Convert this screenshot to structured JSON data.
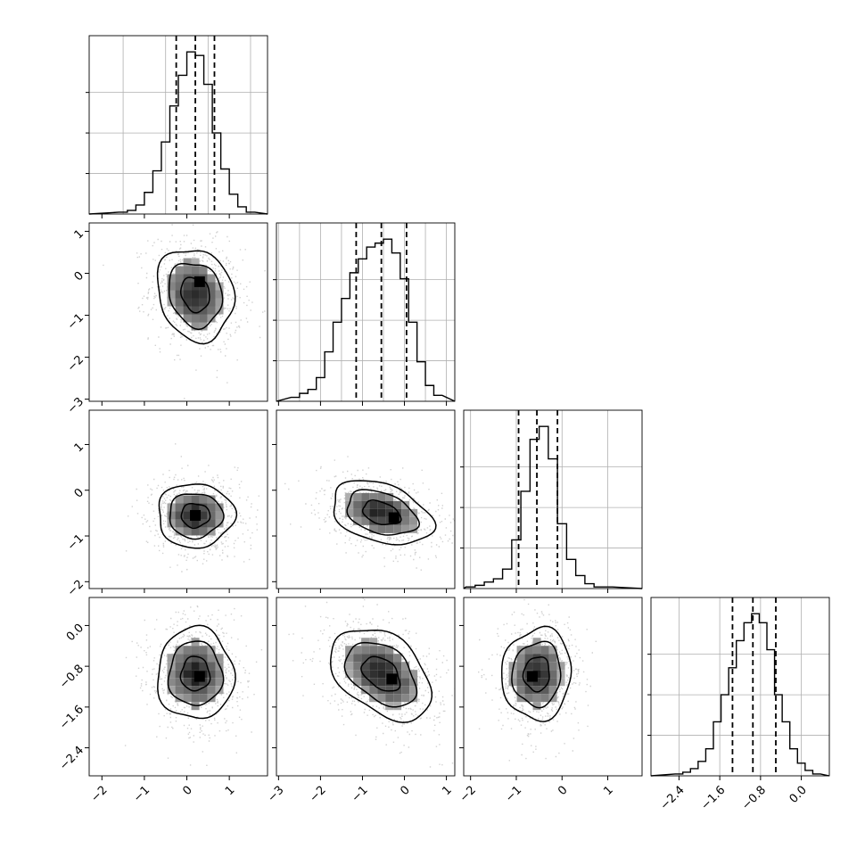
{
  "chart_data": {
    "type": "corner",
    "parameters": 4,
    "grid": true,
    "quantile_lines": "dashed",
    "panel_ranges": [
      [
        -2.3,
        1.9
      ],
      [
        -3.05,
        1.2
      ],
      [
        -2.15,
        1.75
      ],
      [
        -2.95,
        0.55
      ]
    ],
    "diag_ticks": [
      [
        -1.5,
        -0.5,
        0.5,
        1.5
      ],
      [
        -3,
        -2.5,
        -2,
        -1.5,
        -1,
        -0.5,
        0,
        0.5,
        1
      ],
      [
        -2,
        -1,
        0,
        1
      ],
      [
        -2.4,
        -1.6,
        -0.8,
        0.0
      ]
    ],
    "axis_ticks": [
      {
        "values": [
          -2,
          -1,
          0,
          1
        ],
        "labels": [
          "−2",
          "−1",
          "0",
          "1"
        ]
      },
      {
        "values": [
          -3,
          -2,
          -1,
          0,
          1
        ],
        "labels": [
          "−3",
          "−2",
          "−1",
          "0",
          "1"
        ]
      },
      {
        "values": [
          -2,
          -1,
          0,
          1
        ],
        "labels": [
          "−2",
          "−1",
          "0",
          "1"
        ]
      },
      {
        "values": [
          -2.4,
          -1.6,
          -0.8,
          0.0
        ],
        "labels": [
          "−2.4",
          "−1.6",
          "−0.8",
          "0.0"
        ]
      }
    ],
    "histograms": [
      {
        "centers": [
          -1.5,
          -1.3,
          -1.1,
          -0.9,
          -0.7,
          -0.5,
          -0.3,
          -0.1,
          0.1,
          0.3,
          0.5,
          0.7,
          0.9,
          1.1,
          1.3,
          1.5
        ],
        "counts": [
          1,
          2,
          5,
          12,
          24,
          40,
          60,
          77,
          90,
          88,
          72,
          45,
          25,
          11,
          4,
          1
        ],
        "quantiles": [
          -0.25,
          0.2,
          0.65
        ]
      },
      {
        "centers": [
          -2.6,
          -2.4,
          -2.2,
          -2.0,
          -1.8,
          -1.6,
          -1.4,
          -1.2,
          -1.0,
          -0.8,
          -0.6,
          -0.4,
          -0.2,
          0.0,
          0.2,
          0.4,
          0.6,
          0.8
        ],
        "counts": [
          2,
          4,
          6,
          12,
          25,
          40,
          52,
          65,
          72,
          78,
          80,
          82,
          75,
          62,
          40,
          20,
          8,
          3
        ],
        "quantiles": [
          -1.15,
          -0.55,
          0.05
        ]
      },
      {
        "centers": [
          -2.0,
          -1.8,
          -1.6,
          -1.4,
          -1.2,
          -1.0,
          -0.8,
          -0.6,
          -0.4,
          -0.2,
          0.0,
          0.2,
          0.4,
          0.6,
          0.8,
          1.0
        ],
        "counts": [
          1,
          2,
          4,
          6,
          12,
          30,
          60,
          92,
          100,
          80,
          40,
          18,
          8,
          3,
          1,
          1
        ],
        "quantiles": [
          -0.95,
          -0.55,
          -0.1
        ]
      },
      {
        "centers": [
          -2.4,
          -2.25,
          -2.1,
          -1.95,
          -1.8,
          -1.65,
          -1.5,
          -1.35,
          -1.2,
          -1.05,
          -0.9,
          -0.75,
          -0.6,
          -0.45,
          -0.3,
          -0.15,
          0.0,
          0.15,
          0.3
        ],
        "counts": [
          1,
          2,
          4,
          8,
          15,
          30,
          45,
          60,
          75,
          85,
          90,
          85,
          70,
          45,
          30,
          15,
          7,
          3,
          1
        ],
        "quantiles": [
          -1.35,
          -0.95,
          -0.5
        ]
      }
    ],
    "pairs": [
      {
        "row": 1,
        "col": 0,
        "mean": [
          0.2,
          -0.5
        ],
        "sd": [
          0.45,
          0.55
        ],
        "rho": -0.15,
        "peak": [
          0.3,
          -0.2
        ]
      },
      {
        "row": 2,
        "col": 0,
        "mean": [
          0.2,
          -0.55
        ],
        "sd": [
          0.45,
          0.35
        ],
        "rho": 0.0,
        "peak": [
          0.2,
          -0.55
        ]
      },
      {
        "row": 2,
        "col": 1,
        "mean": [
          -0.55,
          -0.5
        ],
        "sd": [
          0.6,
          0.35
        ],
        "rho": -0.35,
        "peak": [
          -0.25,
          -0.6
        ]
      },
      {
        "row": 3,
        "col": 0,
        "mean": [
          0.2,
          -0.95
        ],
        "sd": [
          0.45,
          0.45
        ],
        "rho": 0.0,
        "peak": [
          0.3,
          -1.0
        ]
      },
      {
        "row": 3,
        "col": 1,
        "mean": [
          -0.55,
          -0.95
        ],
        "sd": [
          0.6,
          0.45
        ],
        "rho": -0.4,
        "peak": [
          -0.3,
          -1.05
        ]
      },
      {
        "row": 3,
        "col": 2,
        "mean": [
          -0.55,
          -0.95
        ],
        "sd": [
          0.38,
          0.45
        ],
        "rho": 0.05,
        "peak": [
          -0.65,
          -1.0
        ]
      }
    ]
  }
}
